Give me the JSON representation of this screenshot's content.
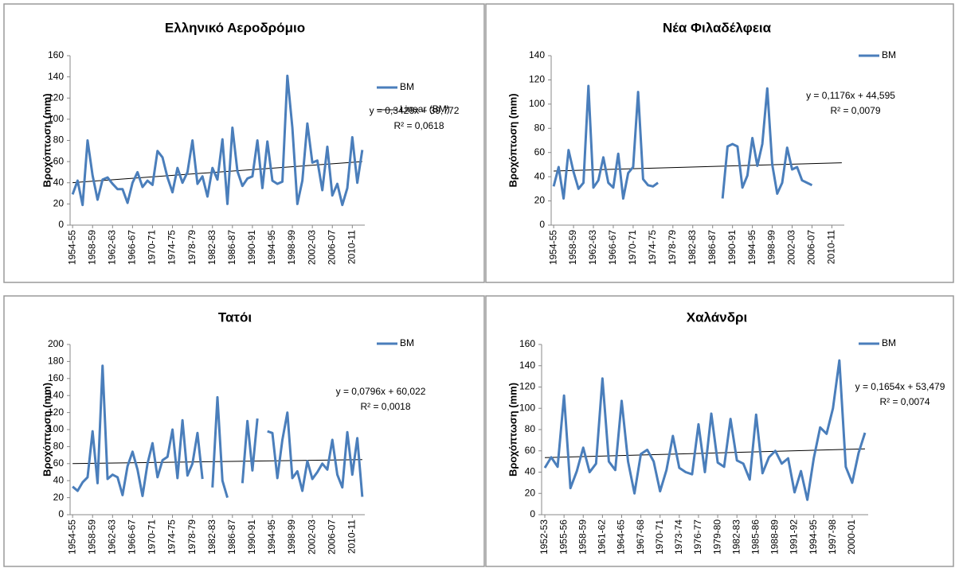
{
  "chart_data": [
    {
      "type": "line",
      "title": "Ελληνικό Αεροδρόμιο",
      "y_label": "Βροχόπτωση (mm)",
      "categories": [
        "1954-55",
        null,
        null,
        null,
        "1958-59",
        null,
        null,
        null,
        "1962-63",
        null,
        null,
        null,
        "1966-67",
        null,
        null,
        null,
        "1970-71",
        null,
        null,
        null,
        "1974-75",
        null,
        null,
        null,
        "1978-79",
        null,
        null,
        null,
        "1982-83",
        null,
        null,
        null,
        "1986-87",
        null,
        null,
        null,
        "1990-91",
        null,
        null,
        null,
        "1994-95",
        null,
        null,
        null,
        "1998-99",
        null,
        null,
        null,
        "2002-03",
        null,
        null,
        null,
        "2006-07",
        null,
        null,
        null,
        "2010-11",
        null,
        null
      ],
      "series": [
        {
          "name": "BM",
          "color": "#4a7ebb",
          "values": [
            29,
            42,
            19,
            80,
            47,
            24,
            43,
            45,
            39,
            34,
            34,
            21,
            40,
            50,
            36,
            42,
            38,
            70,
            64,
            45,
            31,
            54,
            40,
            50,
            80,
            39,
            46,
            27,
            54,
            43,
            81,
            20,
            92,
            51,
            37,
            44,
            46,
            80,
            35,
            79,
            42,
            39,
            41,
            141,
            92,
            20,
            42,
            96,
            59,
            61,
            33,
            74,
            28,
            39,
            19,
            35,
            83,
            40,
            71
          ]
        }
      ],
      "trend": {
        "name": "Linear (BM)",
        "slope": 0.3426,
        "intercept": 39.772,
        "label": "y = 0,3426x + 39,772",
        "r2_label": "R² = 0,0618"
      },
      "ylim": [
        0,
        160
      ],
      "yticks": [
        0,
        20,
        40,
        60,
        80,
        100,
        120,
        140,
        160
      ]
    },
    {
      "type": "line",
      "title": "Νέα Φιλαδέλφεια",
      "y_label": "Βροχόπτωση (mm)",
      "categories": [
        "1954-55",
        null,
        null,
        null,
        "1958-59",
        null,
        null,
        null,
        "1962-63",
        null,
        null,
        null,
        "1966-67",
        null,
        null,
        null,
        "1970-71",
        null,
        null,
        null,
        "1974-75",
        null,
        null,
        null,
        "1978-79",
        null,
        null,
        null,
        "1982-83",
        null,
        null,
        null,
        "1986-87",
        null,
        null,
        null,
        "1990-91",
        null,
        null,
        null,
        "1994-95",
        null,
        null,
        null,
        "1998-99",
        null,
        null,
        null,
        "2002-03",
        null,
        null,
        null,
        "2006-07",
        null,
        null,
        null,
        "2010-11",
        null,
        null
      ],
      "series": [
        {
          "name": "BM",
          "color": "#4a7ebb",
          "values": [
            32,
            48,
            22,
            62,
            44,
            30,
            35,
            115,
            31,
            37,
            56,
            35,
            31,
            59,
            22,
            43,
            48,
            110,
            38,
            33,
            32,
            35,
            null,
            null,
            null,
            null,
            null,
            null,
            null,
            null,
            null,
            null,
            null,
            null,
            22,
            65,
            67,
            65,
            31,
            41,
            72,
            49,
            67,
            113,
            50,
            26,
            35,
            64,
            46,
            48,
            37,
            35,
            33,
            null,
            null,
            null,
            null,
            null,
            null
          ]
        }
      ],
      "trend": {
        "slope": 0.1176,
        "intercept": 44.595,
        "label": "y = 0,1176x + 44,595",
        "r2_label": "R² = 0,0079"
      },
      "ylim": [
        0,
        140
      ],
      "yticks": [
        0,
        20,
        40,
        60,
        80,
        100,
        120,
        140
      ]
    },
    {
      "type": "line",
      "title": "Τατόι",
      "y_label": "Βροχόπτωση (mm)",
      "categories": [
        "1954-55",
        null,
        null,
        null,
        "1958-59",
        null,
        null,
        null,
        "1962-63",
        null,
        null,
        null,
        "1966-67",
        null,
        null,
        null,
        "1970-71",
        null,
        null,
        null,
        "1974-75",
        null,
        null,
        null,
        "1978-79",
        null,
        null,
        null,
        "1982-83",
        null,
        null,
        null,
        "1986-87",
        null,
        null,
        null,
        "1990-91",
        null,
        null,
        null,
        "1994-95",
        null,
        null,
        null,
        "1998-99",
        null,
        null,
        null,
        "2002-03",
        null,
        null,
        null,
        "2006-07",
        null,
        null,
        null,
        "2010-11",
        null,
        null
      ],
      "series": [
        {
          "name": "BM",
          "color": "#4a7ebb",
          "values": [
            33,
            28,
            38,
            44,
            98,
            37,
            175,
            42,
            47,
            44,
            23,
            57,
            74,
            53,
            22,
            60,
            84,
            44,
            64,
            68,
            100,
            43,
            111,
            46,
            60,
            96,
            42,
            null,
            32,
            138,
            40,
            20,
            null,
            null,
            37,
            110,
            52,
            113,
            null,
            98,
            96,
            43,
            88,
            120,
            43,
            51,
            28,
            63,
            42,
            50,
            60,
            53,
            88,
            47,
            32,
            97,
            47,
            90,
            21
          ]
        }
      ],
      "trend": {
        "slope": 0.0796,
        "intercept": 60.022,
        "label": "y = 0,0796x + 60,022",
        "r2_label": "R² = 0,0018"
      },
      "ylim": [
        0,
        200
      ],
      "yticks": [
        0,
        20,
        40,
        60,
        80,
        100,
        120,
        140,
        160,
        180,
        200
      ]
    },
    {
      "type": "line",
      "title": "Χαλάνδρι",
      "y_label": "Βροχόπτωση (mm)",
      "categories": [
        "1952-53",
        null,
        null,
        "1955-56",
        null,
        null,
        "1958-59",
        null,
        null,
        "1961-62",
        null,
        null,
        "1964-65",
        null,
        null,
        "1967-68",
        null,
        null,
        "1970-71",
        null,
        null,
        "1973-74",
        null,
        null,
        "1976-77",
        null,
        null,
        "1979-80",
        null,
        null,
        "1982-83",
        null,
        null,
        "1985-86",
        null,
        null,
        "1988-89",
        null,
        null,
        "1991-92",
        null,
        null,
        "1994-95",
        null,
        null,
        "1997-98",
        null,
        null,
        "2000-01",
        null,
        null
      ],
      "series": [
        {
          "name": "BM",
          "color": "#4a7ebb",
          "values": [
            44,
            54,
            45,
            112,
            25,
            41,
            63,
            40,
            48,
            128,
            50,
            42,
            107,
            50,
            20,
            57,
            61,
            50,
            22,
            42,
            74,
            44,
            40,
            38,
            85,
            40,
            95,
            49,
            45,
            90,
            51,
            48,
            33,
            94,
            39,
            54,
            60,
            48,
            53,
            21,
            41,
            14,
            53,
            82,
            76,
            100,
            145,
            45,
            30,
            58,
            77
          ]
        }
      ],
      "trend": {
        "slope": 0.1654,
        "intercept": 53.479,
        "label": "y = 0,1654x + 53,479",
        "r2_label": "R² = 0,0074"
      },
      "ylim": [
        0,
        160
      ],
      "yticks": [
        0,
        20,
        40,
        60,
        80,
        100,
        120,
        140,
        160
      ]
    }
  ]
}
